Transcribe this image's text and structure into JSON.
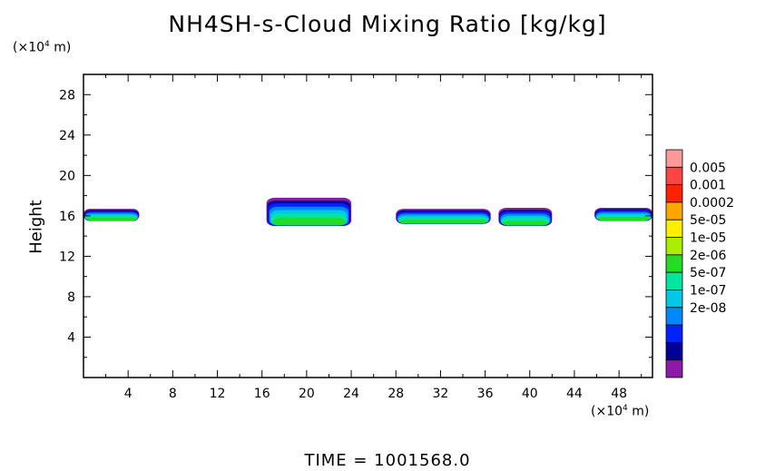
{
  "title": "NH4SH-s-Cloud Mixing Ratio [kg/kg]",
  "y_unit": {
    "prefix": "(×10",
    "exp": "4",
    "suffix": " m)"
  },
  "x_unit": {
    "prefix": "(×10",
    "exp": "4",
    "suffix": " m)"
  },
  "ylabel": "Height",
  "time_label": "TIME  =  1001568.0",
  "chart_data": {
    "type": "heatmap",
    "title": "NH4SH-s-Cloud Mixing Ratio [kg/kg]",
    "xlabel": "(×10⁴ m)",
    "ylabel": "Height",
    "xlim": [
      0,
      51
    ],
    "ylim": [
      0,
      30
    ],
    "xticks": [
      4,
      8,
      12,
      16,
      20,
      24,
      28,
      32,
      36,
      40,
      44,
      48
    ],
    "yticks": [
      4,
      8,
      12,
      16,
      20,
      24,
      28
    ],
    "colorbar": {
      "labels": [
        "0.005",
        "0.001",
        "0.0002",
        "5e-05",
        "1e-05",
        "2e-06",
        "5e-07",
        "1e-07",
        "2e-08"
      ],
      "colors": [
        "#ff9999",
        "#ff4444",
        "#ff2200",
        "#ffa500",
        "#ffee00",
        "#aaee00",
        "#22dd22",
        "#00e5a0",
        "#00c8e6",
        "#0088ff",
        "#0022ff",
        "#000099",
        "#8b1aa8"
      ]
    },
    "cloud_patches": [
      {
        "x_start": 0,
        "x_end": 5,
        "y_bottom": 15.5,
        "y_top": 16.7
      },
      {
        "x_start": 16.4,
        "x_end": 24,
        "y_bottom": 15,
        "y_top": 17.8
      },
      {
        "x_start": 28,
        "x_end": 36.5,
        "y_bottom": 15.2,
        "y_top": 16.7
      },
      {
        "x_start": 37.2,
        "x_end": 42,
        "y_bottom": 15,
        "y_top": 16.8
      },
      {
        "x_start": 45.8,
        "x_end": 51,
        "y_bottom": 15.5,
        "y_top": 16.8
      }
    ]
  }
}
